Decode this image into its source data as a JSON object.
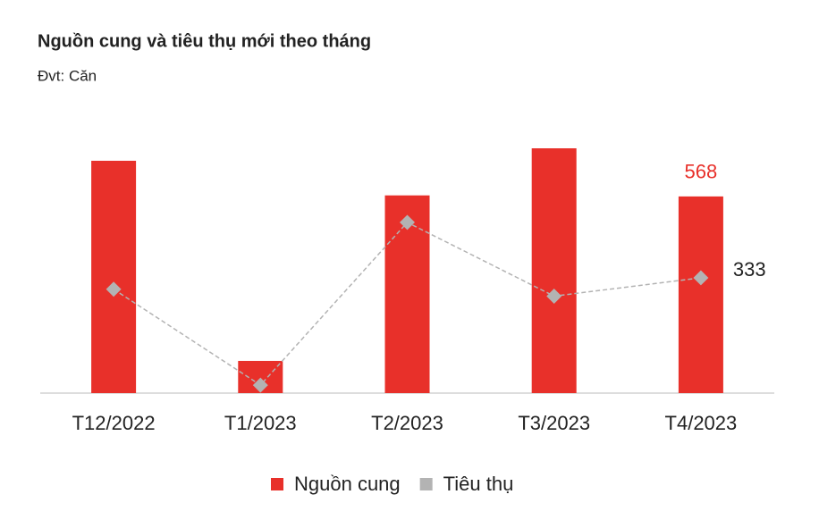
{
  "chart_data": {
    "type": "bar_line",
    "title": "Nguồn cung và tiêu thụ mới theo tháng",
    "subtitle": "Đvt: Căn",
    "categories": [
      "T12/2022",
      "T1/2023",
      "T2/2023",
      "T3/2023",
      "T4/2023"
    ],
    "series": [
      {
        "name": "Nguồn cung",
        "type": "bar",
        "color": "#e8302a",
        "values": [
          671,
          93,
          571,
          707,
          568
        ]
      },
      {
        "name": "Tiêu thụ",
        "type": "line",
        "color": "#b3b3b3",
        "values": [
          300,
          23,
          493,
          280,
          333
        ]
      }
    ]
  }
}
